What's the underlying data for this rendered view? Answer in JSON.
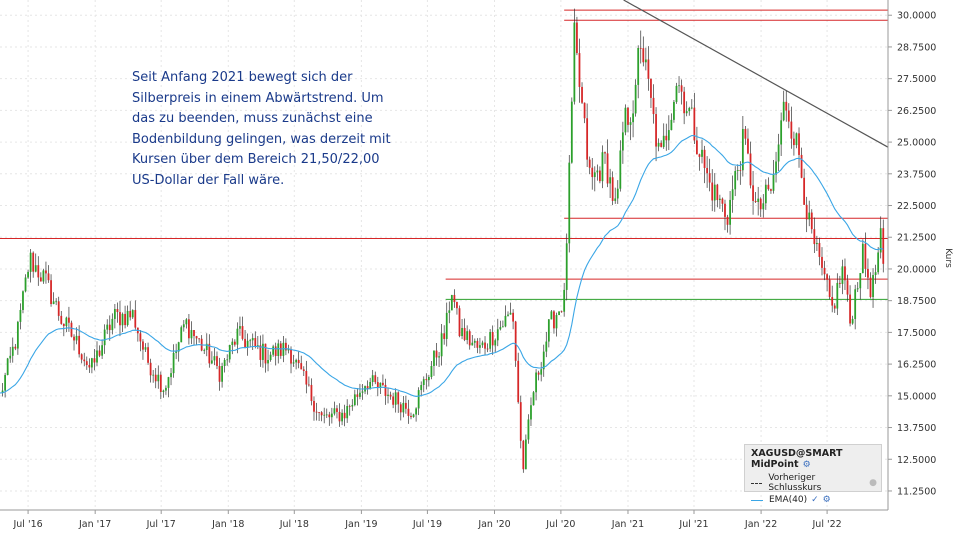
{
  "annotation": "Seit Anfang 2021 bewegt sich der Silberpreis in einem Abwärtstrend. Um das zu beenden, muss zunächst eine Bodenbildung gelingen, was derzeit mit Kursen über dem Bereich 21,50/22,00 US-Dollar der Fall wäre.",
  "legend": {
    "title": "XAGUSD@SMART MidPoint",
    "prev_close": "Vorheriger Schlusskurs",
    "ema": "EMA(40)"
  },
  "colors": {
    "up": "#2ca02c",
    "down": "#d62728",
    "ema": "#3aa6e6",
    "resistance": "#d62728",
    "support": "#2ca02c",
    "trendline": "#555555"
  },
  "chart_data": {
    "type": "candlestick",
    "ylabel": "Kurs",
    "ylim": [
      10.5,
      30.6
    ],
    "y_ticks": [
      "11.2500",
      "12.5000",
      "13.7500",
      "15.0000",
      "16.2500",
      "17.5000",
      "18.7500",
      "20.0000",
      "21.2500",
      "22.5000",
      "23.7500",
      "25.0000",
      "26.2500",
      "27.5000",
      "28.7500",
      "30.0000"
    ],
    "x_ticks": [
      "Jul '16",
      "Jan '17",
      "Jul '17",
      "Jan '18",
      "Jul '18",
      "Jan '19",
      "Jul '19",
      "Jan '20",
      "Jul '20",
      "Jan '21",
      "Jul '21",
      "Jan '22",
      "Jul '22"
    ],
    "x_range": [
      "2016-04-15",
      "2022-12-15"
    ],
    "close_path": [
      [
        "2016-04-15",
        15.0
      ],
      [
        "2016-06-01",
        17.4
      ],
      [
        "2016-07-05",
        20.4
      ],
      [
        "2016-08-15",
        19.6
      ],
      [
        "2016-10-01",
        18.0
      ],
      [
        "2016-11-15",
        17.0
      ],
      [
        "2016-12-20",
        16.0
      ],
      [
        "2017-02-20",
        18.1
      ],
      [
        "2017-04-15",
        18.2
      ],
      [
        "2017-05-20",
        16.5
      ],
      [
        "2017-07-10",
        15.3
      ],
      [
        "2017-09-05",
        17.9
      ],
      [
        "2017-12-10",
        15.9
      ],
      [
        "2018-01-25",
        17.4
      ],
      [
        "2018-04-15",
        16.6
      ],
      [
        "2018-06-15",
        16.9
      ],
      [
        "2018-08-15",
        15.0
      ],
      [
        "2018-09-15",
        14.1
      ],
      [
        "2018-11-15",
        14.3
      ],
      [
        "2019-01-15",
        15.6
      ],
      [
        "2019-03-01",
        15.2
      ],
      [
        "2019-05-20",
        14.4
      ],
      [
        "2019-06-15",
        15.3
      ],
      [
        "2019-08-20",
        17.5
      ],
      [
        "2019-09-05",
        19.3
      ],
      [
        "2019-09-25",
        17.6
      ],
      [
        "2019-11-20",
        16.8
      ],
      [
        "2019-12-15",
        17.2
      ],
      [
        "2020-02-20",
        18.3
      ],
      [
        "2020-03-18",
        12.0
      ],
      [
        "2020-04-15",
        15.1
      ],
      [
        "2020-06-01",
        17.8
      ],
      [
        "2020-07-10",
        18.8
      ],
      [
        "2020-07-25",
        24.0
      ],
      [
        "2020-08-07",
        29.0
      ],
      [
        "2020-09-20",
        23.4
      ],
      [
        "2020-11-01",
        24.3
      ],
      [
        "2020-11-30",
        22.2
      ],
      [
        "2020-12-20",
        25.7
      ],
      [
        "2021-01-25",
        26.8
      ],
      [
        "2021-02-01",
        29.4
      ],
      [
        "2021-03-30",
        24.2
      ],
      [
        "2021-05-15",
        27.5
      ],
      [
        "2021-06-20",
        26.1
      ],
      [
        "2021-08-10",
        23.4
      ],
      [
        "2021-09-30",
        22.1
      ],
      [
        "2021-11-15",
        25.1
      ],
      [
        "2021-12-20",
        22.2
      ],
      [
        "2022-02-01",
        23.2
      ],
      [
        "2022-03-08",
        26.7
      ],
      [
        "2022-04-15",
        24.5
      ],
      [
        "2022-05-15",
        21.5
      ],
      [
        "2022-07-15",
        18.4
      ],
      [
        "2022-08-15",
        20.1
      ],
      [
        "2022-09-01",
        17.8
      ],
      [
        "2022-10-05",
        20.6
      ],
      [
        "2022-11-01",
        19.1
      ],
      [
        "2022-11-25",
        21.1
      ],
      [
        "2022-12-08",
        18.9
      ]
    ],
    "horizontal_lines": [
      {
        "y": 30.2,
        "color": "resistance",
        "from": "2020-07-10",
        "to": "2022-12-15"
      },
      {
        "y": 29.8,
        "color": "resistance",
        "from": "2020-07-10",
        "to": "2022-12-15"
      },
      {
        "y": 22.0,
        "color": "resistance",
        "from": "2020-07-10",
        "to": "2022-12-15"
      },
      {
        "y": 21.2,
        "color": "resistance",
        "from": "2016-04-15",
        "to": "2022-12-15"
      },
      {
        "y": 19.6,
        "color": "resistance",
        "from": "2019-08-20",
        "to": "2022-12-15"
      },
      {
        "y": 18.8,
        "color": "support",
        "from": "2019-08-20",
        "to": "2022-12-15"
      }
    ],
    "trendline": {
      "from": [
        "2020-12-20",
        30.6
      ],
      "to": [
        "2022-12-15",
        24.8
      ]
    }
  }
}
